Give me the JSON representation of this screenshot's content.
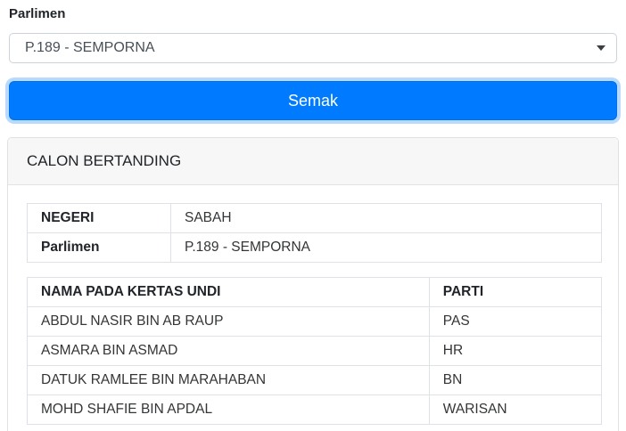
{
  "form": {
    "label": "Parlimen",
    "select_value": "P.189 - SEMPORNA",
    "submit_label": "Semak"
  },
  "card": {
    "header": "CALON BERTANDING",
    "info_table": {
      "rows": [
        {
          "label": "NEGERI",
          "value": "SABAH"
        },
        {
          "label": "Parlimen",
          "value": "P.189 - SEMPORNA"
        }
      ]
    },
    "candidates_table": {
      "headers": {
        "name": "NAMA PADA KERTAS UNDI",
        "party": "PARTI"
      },
      "rows": [
        {
          "name": "ABDUL NASIR BIN AB RAUP",
          "party": "PAS"
        },
        {
          "name": "ASMARA BIN ASMAD",
          "party": "HR"
        },
        {
          "name": "DATUK RAMLEE BIN MARAHABAN",
          "party": "BN"
        },
        {
          "name": "MOHD SHAFIE BIN APDAL",
          "party": "WARISAN"
        }
      ]
    }
  },
  "colors": {
    "primary": "#007bff",
    "focus_ring": "#bcd9fb",
    "card_header_bg": "#f7f7f7",
    "table_border": "#dee2e6"
  }
}
